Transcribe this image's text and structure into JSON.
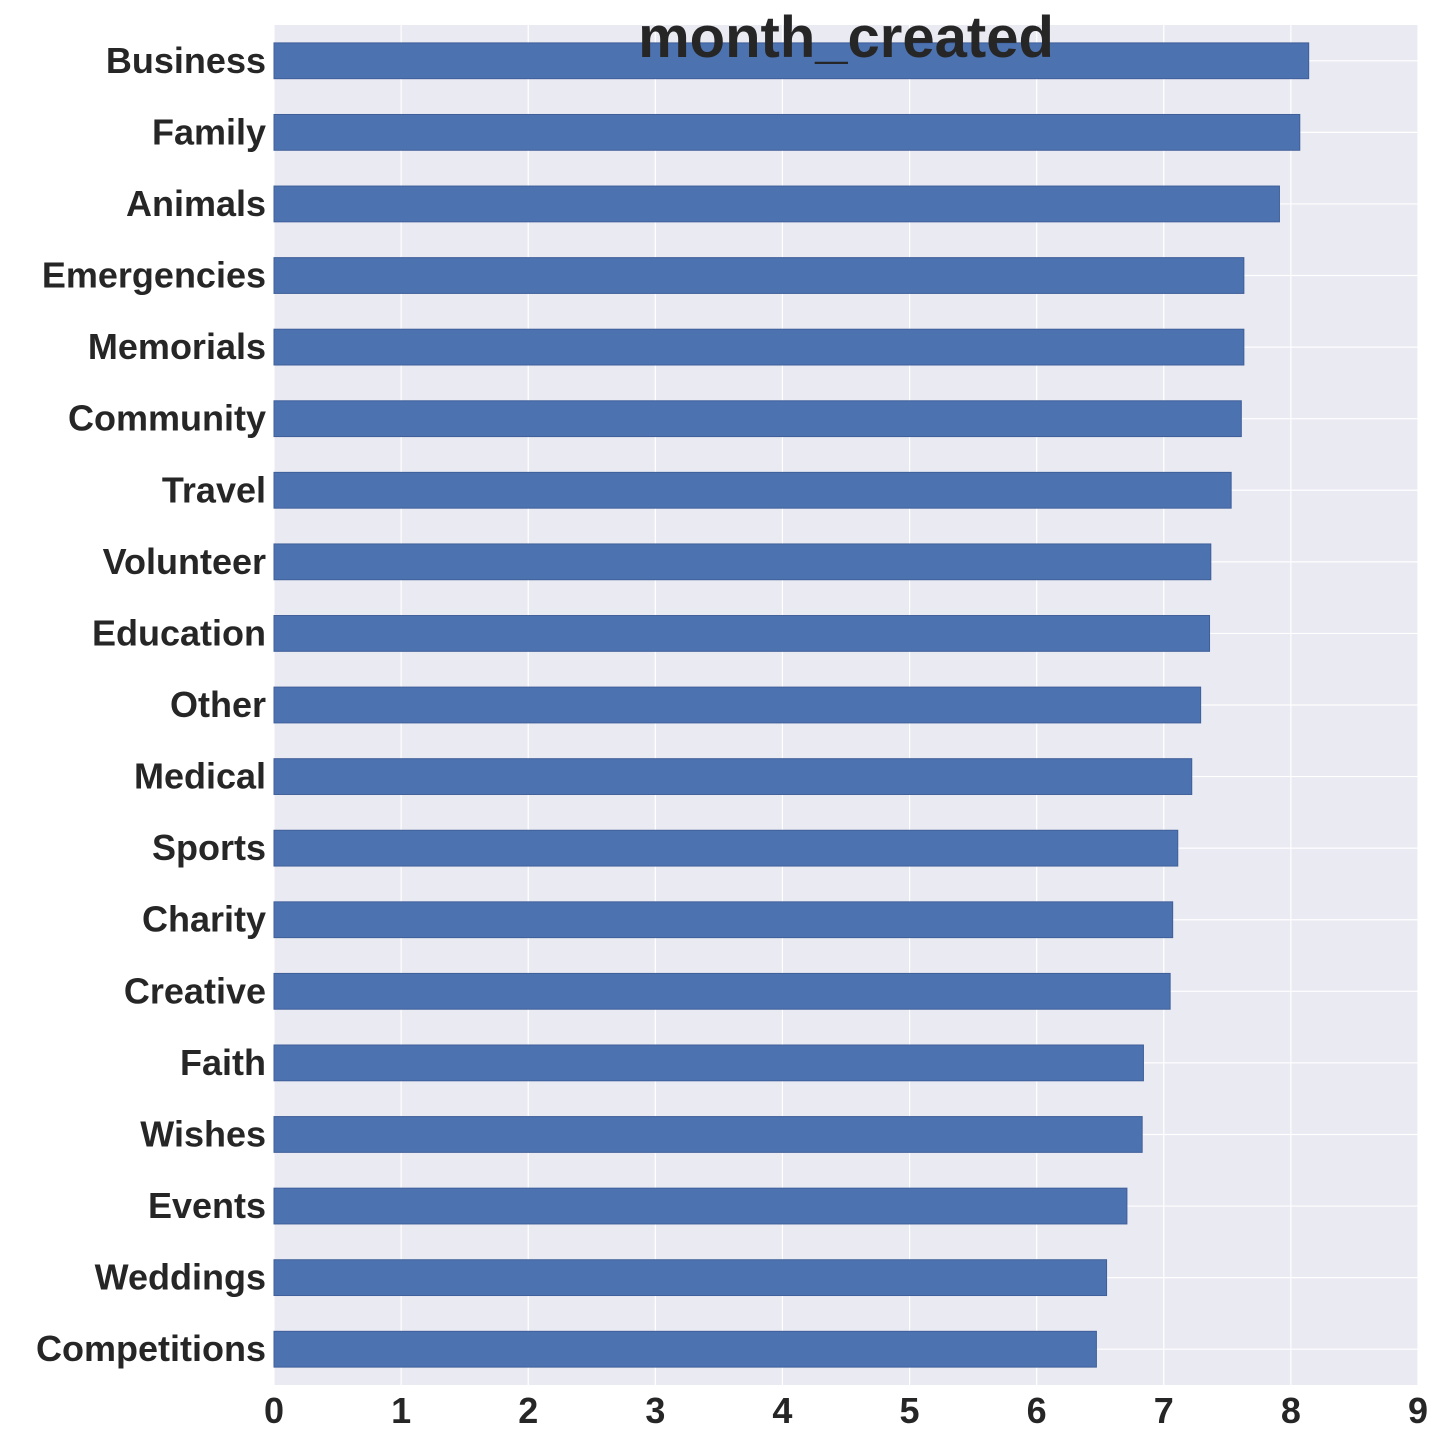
{
  "chart_data": {
    "type": "bar",
    "orientation": "horizontal",
    "title": "month_created",
    "xlabel": "",
    "ylabel": "",
    "categories": [
      "Business",
      "Family",
      "Animals",
      "Emergencies",
      "Memorials",
      "Community",
      "Travel",
      "Volunteer",
      "Education",
      "Other",
      "Medical",
      "Sports",
      "Charity",
      "Creative",
      "Faith",
      "Wishes",
      "Events",
      "Weddings",
      "Competitions"
    ],
    "values": [
      8.14,
      8.07,
      7.91,
      7.63,
      7.63,
      7.61,
      7.53,
      7.37,
      7.36,
      7.29,
      7.22,
      7.11,
      7.07,
      7.05,
      6.84,
      6.83,
      6.71,
      6.55,
      6.47
    ],
    "xlim": [
      0,
      9
    ],
    "xticks": [
      "0",
      "1",
      "2",
      "3",
      "4",
      "5",
      "6",
      "7",
      "8",
      "9"
    ],
    "grid": true,
    "colors": {
      "bar": "#4c72b0",
      "background": "#eaeaf2",
      "grid": "#ffffff",
      "text": "#262626"
    }
  }
}
